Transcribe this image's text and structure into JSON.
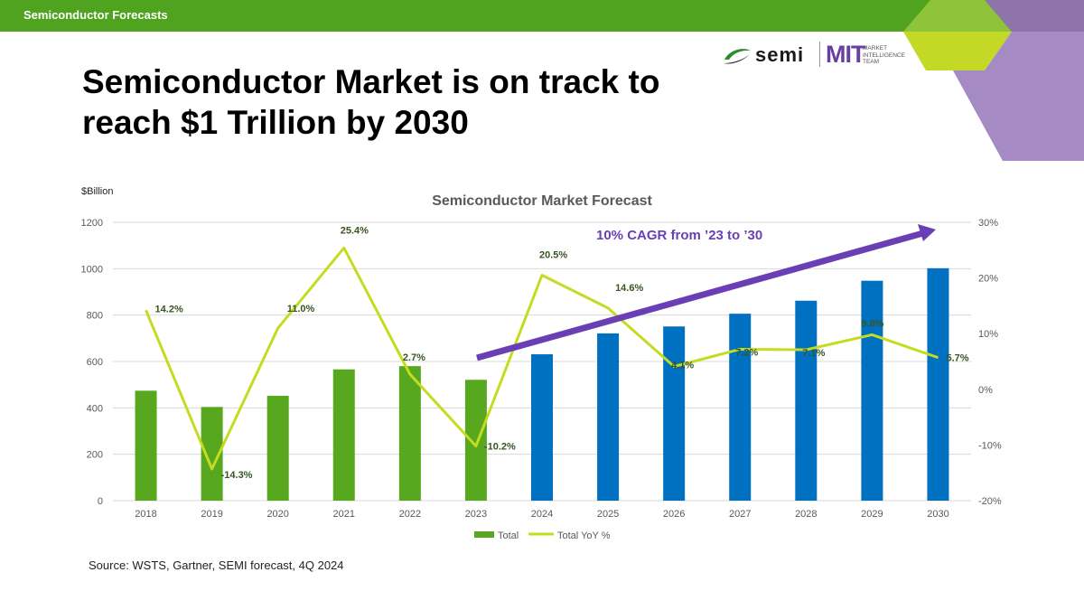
{
  "header": {
    "section_label": "Semiconductor Forecasts"
  },
  "logos": {
    "semi": "semi",
    "mit": "MIT",
    "mit_team": "MARKET INTELLIGENCE TEAM"
  },
  "headline": "Semiconductor Market is on track to reach $1 Trillion by 2030",
  "source": "Source: WSTS, Gartner, SEMI forecast, 4Q 2024",
  "colors": {
    "green_bar": "#58a81f",
    "blue_bar": "#0070c0",
    "line": "#c5db1f",
    "arrow": "#6a3fb5",
    "topbar": "#4fa31f",
    "purple_accent": "#a58ac4",
    "lime_accent": "#c3d926"
  },
  "chart_data": {
    "type": "bar",
    "title": "Semiconductor Market Forecast",
    "ylabel": "$Billion",
    "categories": [
      "2018",
      "2019",
      "2020",
      "2021",
      "2022",
      "2023",
      "2024",
      "2025",
      "2026",
      "2027",
      "2028",
      "2029",
      "2030"
    ],
    "ylim": [
      0,
      1200
    ],
    "yticks": [
      "0",
      "200",
      "400",
      "600",
      "800",
      "1000",
      "1200"
    ],
    "y2lim": [
      -20,
      30
    ],
    "y2ticks": [
      "-20%",
      "-10%",
      "0%",
      "10%",
      "20%",
      "30%"
    ],
    "grid": true,
    "legend": "bottom",
    "series": [
      {
        "name": "Total",
        "type": "bar",
        "values": [
          474,
          404,
          452,
          566,
          580,
          521,
          631,
          721,
          751,
          806,
          862,
          948,
          1002
        ],
        "colors": [
          "#58a81f",
          "#58a81f",
          "#58a81f",
          "#58a81f",
          "#58a81f",
          "#58a81f",
          "#0070c0",
          "#0070c0",
          "#0070c0",
          "#0070c0",
          "#0070c0",
          "#0070c0",
          "#0070c0"
        ]
      },
      {
        "name": "Total YoY %",
        "type": "line",
        "axis": "right",
        "values": [
          14.2,
          -14.3,
          11.0,
          25.4,
          2.7,
          -10.2,
          20.5,
          14.6,
          4.1,
          7.2,
          7.1,
          9.8,
          5.7
        ],
        "labels": [
          "14.2%",
          "-14.3%",
          "11.0%",
          "25.4%",
          "2.7%",
          "-10.2%",
          "20.5%",
          "14.6%",
          "4.1%",
          "7.2%",
          "7.1%",
          "9.8%",
          "5.7%"
        ]
      }
    ],
    "annotation": {
      "text": "10% CAGR from ’23 to ’30",
      "from": "2023",
      "to": "2030"
    }
  }
}
